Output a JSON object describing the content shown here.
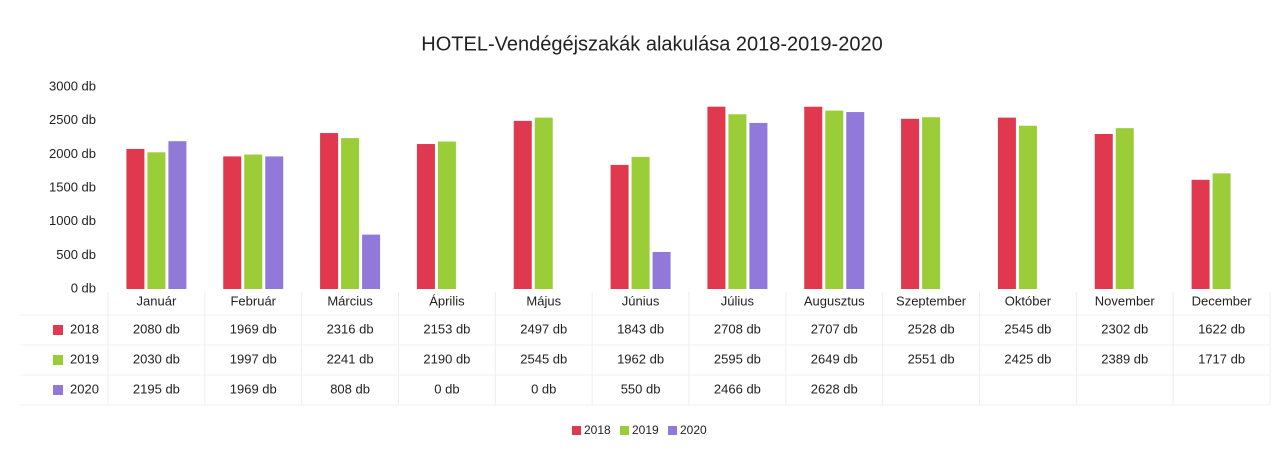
{
  "chart_data": {
    "type": "bar",
    "title": "HOTEL-Vendégéjszakák alakulása 2018-2019-2020",
    "categories": [
      "Január",
      "Február",
      "Március",
      "Április",
      "Május",
      "Június",
      "Július",
      "Augusztus",
      "Szeptember",
      "Október",
      "November",
      "December"
    ],
    "series": [
      {
        "name": "2018",
        "color": "#e0394f",
        "values": [
          2080,
          1969,
          2316,
          2153,
          2497,
          1843,
          2708,
          2707,
          2528,
          2545,
          2302,
          1622
        ],
        "value_labels": [
          "2080 db",
          "1969 db",
          "2316 db",
          "2153 db",
          "2497 db",
          "1843 db",
          "2708 db",
          "2707 db",
          "2528 db",
          "2545 db",
          "2302 db",
          "1622 db"
        ]
      },
      {
        "name": "2019",
        "color": "#9acd38",
        "values": [
          2030,
          1997,
          2241,
          2190,
          2545,
          1962,
          2595,
          2649,
          2551,
          2425,
          2389,
          1717
        ],
        "value_labels": [
          "2030 db",
          "1997 db",
          "2241 db",
          "2190 db",
          "2545 db",
          "1962 db",
          "2595 db",
          "2649 db",
          "2551 db",
          "2425 db",
          "2389 db",
          "1717 db"
        ]
      },
      {
        "name": "2020",
        "color": "#9079d8",
        "values": [
          2195,
          1969,
          808,
          0,
          0,
          550,
          2466,
          2628,
          null,
          null,
          null,
          null
        ],
        "value_labels": [
          "2195 db",
          "1969 db",
          "808 db",
          "0 db",
          "0 db",
          "550 db",
          "2466 db",
          "2628 db",
          null,
          null,
          null,
          null
        ]
      }
    ],
    "ylim": [
      0,
      3000
    ],
    "yticks": [
      {
        "value": 0,
        "label": "0 db"
      },
      {
        "value": 500,
        "label": "500 db"
      },
      {
        "value": 1000,
        "label": "1000 db"
      },
      {
        "value": 1500,
        "label": "1500 db"
      },
      {
        "value": 2000,
        "label": "2000 db"
      },
      {
        "value": 2500,
        "label": "2500 db"
      },
      {
        "value": 3000,
        "label": "3000 db"
      }
    ],
    "grid": false,
    "legend": "bottom"
  }
}
